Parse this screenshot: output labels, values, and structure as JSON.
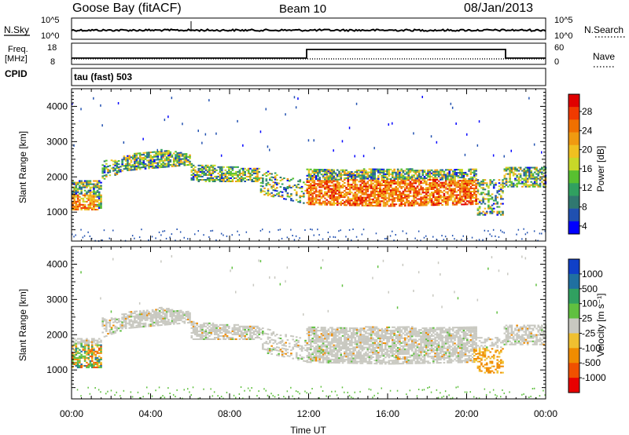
{
  "header": {
    "station": "Goose Bay (fitACF)",
    "beam": "Beam 10",
    "date": "08/Jan/2013"
  },
  "strip": {
    "nsky_label": "N.Sky",
    "nsky_ticks": [
      "10^5",
      "10^0"
    ],
    "nsearch_label": "N.Search",
    "nsearch_ticks": [
      "10^5",
      "10^0"
    ],
    "freq_label_line1": "Freq.",
    "freq_label_line2": "[MHz]",
    "freq_ticks": [
      "18",
      "8"
    ],
    "nave_label": "Nave",
    "nave_ticks": [
      "60",
      "0"
    ],
    "cpid_label": "CPID",
    "cpid_value": "tau (fast) 503"
  },
  "chart_data": [
    {
      "type": "heatmap",
      "name": "power",
      "ylabel": "Slant Range [km]",
      "ylim": [
        180,
        4500
      ],
      "xlim_hours": [
        0,
        24
      ],
      "y_ticks": [
        1000,
        2000,
        3000,
        4000
      ],
      "colorbar": {
        "label": "Power [dB]",
        "ticks": [
          "28",
          "24",
          "20",
          "16",
          "12",
          "8",
          "4"
        ],
        "colors": [
          "#e00000",
          "#f03a00",
          "#f07000",
          "#f09a10",
          "#f0c020",
          "#c8d828",
          "#58c030",
          "#30a060",
          "#307870",
          "#2050b0",
          "#0000ff"
        ]
      }
    },
    {
      "type": "heatmap",
      "name": "velocity",
      "ylabel": "Slant Range [km]",
      "xlabel": "Time UT",
      "ylim": [
        180,
        4500
      ],
      "xlim_hours": [
        0,
        24
      ],
      "y_ticks": [
        1000,
        2000,
        3000,
        4000
      ],
      "x_ticks": [
        "00:00",
        "04:00",
        "08:00",
        "12:00",
        "16:00",
        "20:00",
        "00:00"
      ],
      "colorbar": {
        "label": "Velocity [m s⁻¹]",
        "ticks": [
          "1000",
          "500",
          "100",
          "25",
          "-25",
          "-100",
          "-500",
          "-1000"
        ],
        "colors": [
          "#1040c8",
          "#2070a0",
          "#30a060",
          "#60c040",
          "#c8c8c0",
          "#f0c030",
          "#f08c00",
          "#f05000",
          "#e80000"
        ]
      }
    }
  ]
}
